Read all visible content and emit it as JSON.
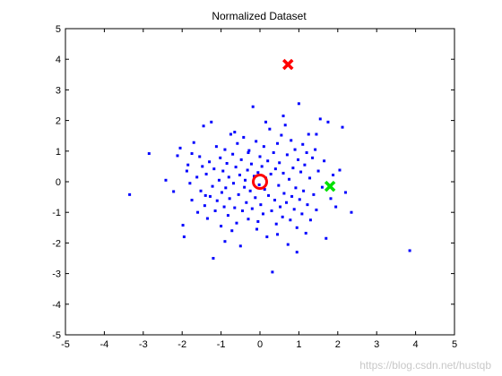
{
  "chart_data": {
    "type": "scatter",
    "title": "Normalized Dataset",
    "xlabel": "",
    "ylabel": "",
    "xlim": [
      -5,
      5
    ],
    "ylim": [
      -5,
      5
    ],
    "xticks": [
      -5,
      -4,
      -3,
      -2,
      -1,
      0,
      1,
      2,
      3,
      4,
      5
    ],
    "yticks": [
      -5,
      -4,
      -3,
      -2,
      -1,
      0,
      1,
      2,
      3,
      4,
      5
    ],
    "grid": false,
    "colors": {
      "points": "#0000ff",
      "origin_marker": "#ff0000",
      "red_x": "#ff0000",
      "green_x": "#00e000"
    },
    "series": [
      {
        "marker": "dot",
        "points": [
          [
            -3.35,
            -0.42
          ],
          [
            -2.85,
            0.92
          ],
          [
            -2.42,
            0.05
          ],
          [
            -2.22,
            -0.32
          ],
          [
            -2.12,
            0.85
          ],
          [
            -2.05,
            1.1
          ],
          [
            -1.98,
            -1.42
          ],
          [
            -1.95,
            -1.8
          ],
          [
            -1.88,
            0.35
          ],
          [
            -1.85,
            0.55
          ],
          [
            -1.8,
            -0.05
          ],
          [
            -1.75,
            -0.6
          ],
          [
            -1.7,
            1.28
          ],
          [
            -1.62,
            0.15
          ],
          [
            -1.6,
            -1.0
          ],
          [
            -1.55,
            0.82
          ],
          [
            -1.52,
            -0.3
          ],
          [
            -1.48,
            0.5
          ],
          [
            -1.45,
            1.82
          ],
          [
            -1.42,
            -0.78
          ],
          [
            -1.38,
            0.25
          ],
          [
            -1.35,
            -1.2
          ],
          [
            -1.3,
            0.65
          ],
          [
            -1.28,
            -0.48
          ],
          [
            -1.25,
            1.95
          ],
          [
            -1.22,
            -0.15
          ],
          [
            -1.2,
            -2.5
          ],
          [
            -1.18,
            0.42
          ],
          [
            -1.15,
            -0.95
          ],
          [
            -1.12,
            1.15
          ],
          [
            -1.1,
            -0.62
          ],
          [
            -1.05,
            0.05
          ],
          [
            -1.02,
            0.78
          ],
          [
            -1.0,
            -1.45
          ],
          [
            -0.98,
            -0.35
          ],
          [
            -0.95,
            0.35
          ],
          [
            -0.92,
            -0.82
          ],
          [
            -0.9,
            1.05
          ],
          [
            -0.88,
            -0.2
          ],
          [
            -0.85,
            0.6
          ],
          [
            -0.82,
            -1.1
          ],
          [
            -0.8,
            0.15
          ],
          [
            -0.78,
            -0.55
          ],
          [
            -0.75,
            1.55
          ],
          [
            -0.72,
            -1.6
          ],
          [
            -0.7,
            0.9
          ],
          [
            -0.68,
            -0.05
          ],
          [
            -0.65,
            -0.85
          ],
          [
            -0.62,
            0.48
          ],
          [
            -0.6,
            -1.35
          ],
          [
            -0.58,
            1.25
          ],
          [
            -0.55,
            -0.42
          ],
          [
            -0.52,
            0.22
          ],
          [
            -0.5,
            -2.1
          ],
          [
            -0.48,
            0.72
          ],
          [
            -0.45,
            -0.95
          ],
          [
            -0.42,
            1.45
          ],
          [
            -0.4,
            -0.18
          ],
          [
            -0.38,
            0.05
          ],
          [
            -0.35,
            -0.68
          ],
          [
            -0.32,
            0.38
          ],
          [
            -0.3,
            -1.22
          ],
          [
            -0.28,
            1.02
          ],
          [
            -0.25,
            -0.3
          ],
          [
            -0.22,
            0.58
          ],
          [
            -0.2,
            -0.88
          ],
          [
            -0.18,
            2.45
          ],
          [
            -0.15,
            0.18
          ],
          [
            -0.12,
            -0.52
          ],
          [
            -0.1,
            1.32
          ],
          [
            -0.08,
            -1.55
          ],
          [
            -0.05,
            0.3
          ],
          [
            -0.02,
            -0.1
          ],
          [
            0.0,
            0.82
          ],
          [
            0.02,
            -0.75
          ],
          [
            0.05,
            0.5
          ],
          [
            0.08,
            -1.05
          ],
          [
            0.1,
            1.15
          ],
          [
            0.12,
            -0.25
          ],
          [
            0.15,
            0.12
          ],
          [
            0.18,
            -1.8
          ],
          [
            0.2,
            0.68
          ],
          [
            0.22,
            -0.45
          ],
          [
            0.25,
            1.72
          ],
          [
            0.28,
            0.25
          ],
          [
            0.3,
            -0.95
          ],
          [
            0.32,
            -2.95
          ],
          [
            0.35,
            0.95
          ],
          [
            0.38,
            -0.6
          ],
          [
            0.4,
            0.42
          ],
          [
            0.42,
            -1.38
          ],
          [
            0.45,
            1.25
          ],
          [
            0.48,
            -0.12
          ],
          [
            0.5,
            0.62
          ],
          [
            0.52,
            -0.82
          ],
          [
            0.55,
            1.52
          ],
          [
            0.58,
            -1.15
          ],
          [
            0.6,
            0.28
          ],
          [
            0.62,
            -0.38
          ],
          [
            0.65,
            1.85
          ],
          [
            0.68,
            -0.68
          ],
          [
            0.7,
            0.88
          ],
          [
            0.72,
            -2.05
          ],
          [
            0.75,
            0.08
          ],
          [
            0.78,
            -1.25
          ],
          [
            0.8,
            1.35
          ],
          [
            0.82,
            -0.48
          ],
          [
            0.85,
            0.45
          ],
          [
            0.88,
            -0.9
          ],
          [
            0.9,
            1.05
          ],
          [
            0.92,
            -0.2
          ],
          [
            0.95,
            -1.5
          ],
          [
            0.98,
            0.72
          ],
          [
            1.0,
            2.55
          ],
          [
            1.02,
            -0.58
          ],
          [
            1.05,
            0.32
          ],
          [
            1.08,
            -1.05
          ],
          [
            1.1,
            1.22
          ],
          [
            1.12,
            -0.3
          ],
          [
            1.15,
            0.55
          ],
          [
            1.18,
            -1.68
          ],
          [
            1.2,
            0.95
          ],
          [
            1.22,
            -0.75
          ],
          [
            1.25,
            1.55
          ],
          [
            1.28,
            0.12
          ],
          [
            1.3,
            -1.25
          ],
          [
            1.35,
            0.78
          ],
          [
            1.38,
            -0.42
          ],
          [
            1.42,
            1.05
          ],
          [
            1.45,
            -0.92
          ],
          [
            1.5,
            0.35
          ],
          [
            1.55,
            2.05
          ],
          [
            1.6,
            -0.18
          ],
          [
            1.65,
            0.68
          ],
          [
            1.7,
            -1.85
          ],
          [
            1.75,
            1.95
          ],
          [
            1.82,
            -0.55
          ],
          [
            1.88,
            0.22
          ],
          [
            1.95,
            -0.82
          ],
          [
            2.05,
            0.38
          ],
          [
            2.12,
            1.78
          ],
          [
            2.2,
            -0.35
          ],
          [
            2.35,
            -1.0
          ],
          [
            3.85,
            -2.25
          ],
          [
            -0.3,
            0.95
          ],
          [
            -0.65,
            1.62
          ],
          [
            0.15,
            1.95
          ],
          [
            0.45,
            -1.72
          ],
          [
            -1.4,
            -0.45
          ],
          [
            0.95,
            -2.3
          ],
          [
            -0.9,
            -1.95
          ],
          [
            0.6,
            2.15
          ],
          [
            -0.05,
            -1.3
          ],
          [
            1.45,
            1.55
          ],
          [
            -1.75,
            0.92
          ]
        ]
      },
      {
        "marker": "o",
        "points": [
          [
            0.0,
            0.0
          ]
        ]
      },
      {
        "marker": "x",
        "color_key": "red_x",
        "points": [
          [
            0.72,
            3.83
          ]
        ]
      },
      {
        "marker": "x",
        "color_key": "green_x",
        "points": [
          [
            1.8,
            -0.15
          ]
        ]
      }
    ]
  },
  "watermark": "https://blog.csdn.net/hustqb"
}
